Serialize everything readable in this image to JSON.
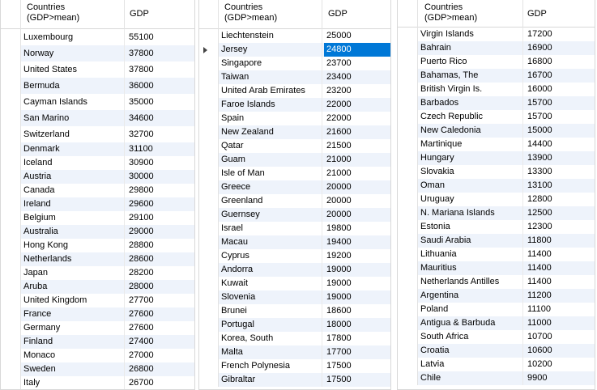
{
  "grids": [
    {
      "header": {
        "col1": "Countries\n(GDP>mean)",
        "col2": "GDP"
      },
      "rows": [
        [
          "Luxembourg",
          "55100"
        ],
        [
          "Norway",
          "37800"
        ],
        [
          "United States",
          "37800"
        ],
        [
          "Bermuda",
          "36000"
        ],
        [
          "Cayman Islands",
          "35000"
        ],
        [
          "San Marino",
          "34600"
        ],
        [
          "Switzerland",
          "32700"
        ],
        [
          "Denmark",
          "31100"
        ],
        [
          "Iceland",
          "30900"
        ],
        [
          "Austria",
          "30000"
        ],
        [
          "Canada",
          "29800"
        ],
        [
          "Ireland",
          "29600"
        ],
        [
          "Belgium",
          "29100"
        ],
        [
          "Australia",
          "29000"
        ],
        [
          "Hong Kong",
          "28800"
        ],
        [
          "Netherlands",
          "28600"
        ],
        [
          "Japan",
          "28200"
        ],
        [
          "Aruba",
          "28000"
        ],
        [
          "United Kingdom",
          "27700"
        ],
        [
          "France",
          "27600"
        ],
        [
          "Germany",
          "27600"
        ],
        [
          "Finland",
          "27400"
        ],
        [
          "Monaco",
          "27000"
        ],
        [
          "Sweden",
          "26800"
        ],
        [
          "Italy",
          "26700"
        ]
      ]
    },
    {
      "header": {
        "col1": "Countries\n(GDP>mean)",
        "col2": "GDP"
      },
      "selected_row": 1,
      "rows": [
        [
          "Liechtenstein",
          "25000"
        ],
        [
          "Jersey",
          "24800"
        ],
        [
          "Singapore",
          "23700"
        ],
        [
          "Taiwan",
          "23400"
        ],
        [
          "United Arab Emirates",
          "23200"
        ],
        [
          "Faroe Islands",
          "22000"
        ],
        [
          "Spain",
          "22000"
        ],
        [
          "New Zealand",
          "21600"
        ],
        [
          "Qatar",
          "21500"
        ],
        [
          "Guam",
          "21000"
        ],
        [
          "Isle of Man",
          "21000"
        ],
        [
          "Greece",
          "20000"
        ],
        [
          "Greenland",
          "20000"
        ],
        [
          "Guernsey",
          "20000"
        ],
        [
          "Israel",
          "19800"
        ],
        [
          "Macau",
          "19400"
        ],
        [
          "Cyprus",
          "19200"
        ],
        [
          "Andorra",
          "19000"
        ],
        [
          "Kuwait",
          "19000"
        ],
        [
          "Slovenia",
          "19000"
        ],
        [
          "Brunei",
          "18600"
        ],
        [
          "Portugal",
          "18000"
        ],
        [
          "Korea, South",
          "17800"
        ],
        [
          "Malta",
          "17700"
        ],
        [
          "French Polynesia",
          "17500"
        ],
        [
          "Gibraltar",
          "17500"
        ]
      ]
    },
    {
      "header": {
        "col1": "Countries\n(GDP>mean)",
        "col2": "GDP"
      },
      "rows": [
        [
          "Virgin Islands",
          "17200"
        ],
        [
          "Bahrain",
          "16900"
        ],
        [
          "Puerto Rico",
          "16800"
        ],
        [
          "Bahamas, The",
          "16700"
        ],
        [
          "British Virgin Is.",
          "16000"
        ],
        [
          "Barbados",
          "15700"
        ],
        [
          "Czech Republic",
          "15700"
        ],
        [
          "New Caledonia",
          "15000"
        ],
        [
          "Martinique",
          "14400"
        ],
        [
          "Hungary",
          "13900"
        ],
        [
          "Slovakia",
          "13300"
        ],
        [
          "Oman",
          "13100"
        ],
        [
          "Uruguay",
          "12800"
        ],
        [
          "N. Mariana Islands",
          "12500"
        ],
        [
          "Estonia",
          "12300"
        ],
        [
          "Saudi Arabia",
          "11800"
        ],
        [
          "Lithuania",
          "11400"
        ],
        [
          "Mauritius",
          "11400"
        ],
        [
          "Netherlands Antilles",
          "11400"
        ],
        [
          "Argentina",
          "11200"
        ],
        [
          "Poland",
          "11100"
        ],
        [
          "Antigua & Barbuda",
          "11000"
        ],
        [
          "South Africa",
          "10700"
        ],
        [
          "Croatia",
          "10600"
        ],
        [
          "Latvia",
          "10200"
        ],
        [
          "Chile",
          "9900"
        ]
      ]
    }
  ]
}
